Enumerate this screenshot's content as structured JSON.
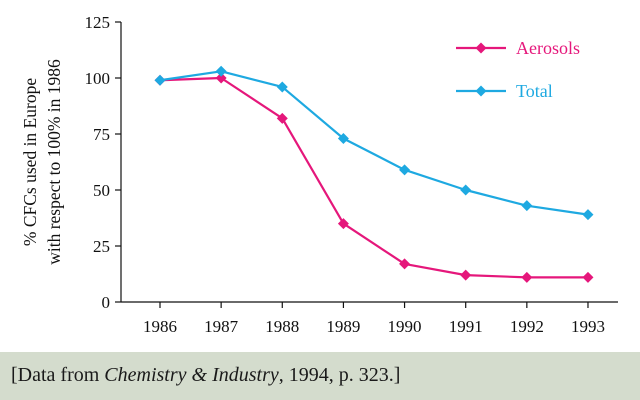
{
  "chart_data": {
    "type": "line",
    "ylabel_lines": [
      "% CFCs used in Europe",
      "with respect to 100% in 1986"
    ],
    "xlabel": "",
    "categories": [
      "1986",
      "1987",
      "1988",
      "1989",
      "1990",
      "1991",
      "1992",
      "1993"
    ],
    "ylim": [
      0,
      125
    ],
    "yticks": [
      0,
      25,
      50,
      75,
      100,
      125
    ],
    "grid": false,
    "legend_position": "top-right",
    "series": [
      {
        "name": "Aerosols",
        "color": "#e5177b",
        "values": [
          99,
          100,
          82,
          35,
          17,
          12,
          11,
          11
        ]
      },
      {
        "name": "Total",
        "color": "#1ea9e1",
        "values": [
          99,
          103,
          96,
          73,
          59,
          50,
          43,
          39
        ]
      }
    ]
  },
  "caption": {
    "prefix": "[Data from ",
    "source": "Chemistry & Industry",
    "suffix": ", 1994, p. 323.]"
  }
}
